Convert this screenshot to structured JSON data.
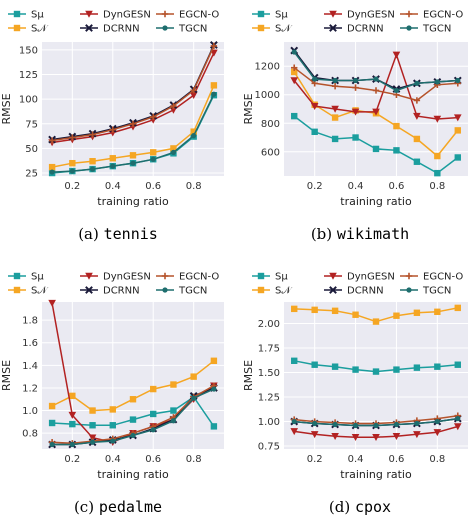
{
  "legend": {
    "s_mu": "Sμ",
    "s_n": "S𝒩",
    "dyngesn": "DynGESN",
    "dcrnn": "DCRNN",
    "egcn": "EGCN-O",
    "tgcn": "TGCN"
  },
  "series_styles": [
    {
      "key": "s_mu",
      "color": "#1b9e9e",
      "marker": "square"
    },
    {
      "key": "s_n",
      "color": "#f5a623",
      "marker": "square"
    },
    {
      "key": "dyngesn",
      "color": "#b22222",
      "marker": "triangle-down"
    },
    {
      "key": "dcrnn",
      "color": "#1a1a3a",
      "marker": "x"
    },
    {
      "key": "egcn",
      "color": "#b5532b",
      "marker": "plus"
    },
    {
      "key": "tgcn",
      "color": "#1e6e6e",
      "marker": "circle"
    }
  ],
  "chart_data": [
    {
      "type": "line",
      "caption_prefix": "(a)",
      "caption_name": "tennis",
      "xlabel": "training ratio",
      "ylabel": "RMSE",
      "xlim": [
        0.05,
        0.95
      ],
      "ylim": [
        22,
        158
      ],
      "xticks": [
        0.2,
        0.4,
        0.6,
        0.8
      ],
      "xtick_labels": [
        "0.2",
        "0.4",
        "0.6",
        "0.8"
      ],
      "yticks": [
        25,
        50,
        75,
        100,
        125,
        150
      ],
      "ytick_labels": [
        "25",
        "50",
        "75",
        "100",
        "125",
        "150"
      ],
      "x": [
        0.1,
        0.2,
        0.3,
        0.4,
        0.5,
        0.6,
        0.7,
        0.8,
        0.9
      ],
      "series": [
        {
          "key": "s_mu",
          "values": [
            25,
            27,
            29,
            32,
            35,
            39,
            45,
            62,
            104
          ]
        },
        {
          "key": "s_n",
          "values": [
            31,
            35,
            37,
            40,
            43,
            46,
            50,
            67,
            114
          ]
        },
        {
          "key": "dyngesn",
          "values": [
            56,
            59,
            62,
            66,
            72,
            79,
            89,
            104,
            147
          ]
        },
        {
          "key": "dcrnn",
          "values": [
            59,
            62,
            65,
            70,
            76,
            83,
            94,
            110,
            155
          ]
        },
        {
          "key": "egcn",
          "values": [
            58,
            61,
            64,
            69,
            75,
            82,
            93,
            109,
            154
          ]
        },
        {
          "key": "tgcn",
          "values": [
            26,
            27,
            29,
            32,
            35,
            39,
            46,
            63,
            105
          ]
        }
      ]
    },
    {
      "type": "line",
      "caption_prefix": "(b)",
      "caption_name": "wikimath",
      "xlabel": "training ratio",
      "ylabel": "RMSE",
      "xlim": [
        0.05,
        0.95
      ],
      "ylim": [
        430,
        1370
      ],
      "xticks": [
        0.2,
        0.4,
        0.6,
        0.8
      ],
      "xtick_labels": [
        "0.2",
        "0.4",
        "0.6",
        "0.8"
      ],
      "yticks": [
        600,
        800,
        1000,
        1200
      ],
      "ytick_labels": [
        "600",
        "800",
        "1000",
        "1200"
      ],
      "x": [
        0.1,
        0.2,
        0.3,
        0.4,
        0.5,
        0.6,
        0.7,
        0.8,
        0.9
      ],
      "series": [
        {
          "key": "s_mu",
          "values": [
            850,
            740,
            690,
            700,
            620,
            610,
            530,
            450,
            560
          ]
        },
        {
          "key": "s_n",
          "values": [
            1160,
            930,
            840,
            890,
            870,
            780,
            690,
            570,
            750
          ]
        },
        {
          "key": "dyngesn",
          "values": [
            1100,
            920,
            900,
            880,
            880,
            1280,
            850,
            830,
            840
          ]
        },
        {
          "key": "dcrnn",
          "values": [
            1310,
            1120,
            1100,
            1100,
            1110,
            1040,
            1080,
            1090,
            1100
          ]
        },
        {
          "key": "egcn",
          "values": [
            1190,
            1080,
            1060,
            1050,
            1030,
            1000,
            960,
            1070,
            1080
          ]
        },
        {
          "key": "tgcn",
          "values": [
            1300,
            1110,
            1100,
            1100,
            1110,
            1030,
            1080,
            1090,
            1100
          ]
        }
      ]
    },
    {
      "type": "line",
      "caption_prefix": "(c)",
      "caption_name": "pedalme",
      "xlabel": "training ratio",
      "ylabel": "RMSE",
      "xlim": [
        0.05,
        0.95
      ],
      "ylim": [
        0.66,
        1.96
      ],
      "xticks": [
        0.2,
        0.4,
        0.6,
        0.8
      ],
      "xtick_labels": [
        "0.2",
        "0.4",
        "0.6",
        "0.8"
      ],
      "yticks": [
        0.8,
        1.0,
        1.2,
        1.4,
        1.6,
        1.8
      ],
      "ytick_labels": [
        "0.8",
        "1.0",
        "1.2",
        "1.4",
        "1.6",
        "1.8"
      ],
      "x": [
        0.1,
        0.2,
        0.3,
        0.4,
        0.5,
        0.6,
        0.7,
        0.8,
        0.9
      ],
      "series": [
        {
          "key": "s_mu",
          "values": [
            0.89,
            0.88,
            0.87,
            0.87,
            0.92,
            0.97,
            1.0,
            1.12,
            0.86
          ]
        },
        {
          "key": "s_n",
          "values": [
            1.04,
            1.13,
            1.0,
            1.01,
            1.1,
            1.19,
            1.23,
            1.3,
            1.44
          ]
        },
        {
          "key": "dyngesn",
          "values": [
            1.95,
            0.96,
            0.76,
            0.72,
            0.8,
            0.86,
            0.92,
            1.1,
            1.22
          ]
        },
        {
          "key": "dcrnn",
          "values": [
            0.7,
            0.7,
            0.72,
            0.74,
            0.78,
            0.84,
            0.92,
            1.13,
            1.2
          ]
        },
        {
          "key": "egcn",
          "values": [
            0.72,
            0.71,
            0.73,
            0.75,
            0.8,
            0.86,
            0.94,
            1.12,
            1.22
          ]
        },
        {
          "key": "tgcn",
          "values": [
            0.7,
            0.7,
            0.72,
            0.73,
            0.78,
            0.83,
            0.91,
            1.11,
            1.19
          ]
        }
      ]
    },
    {
      "type": "line",
      "caption_prefix": "(d)",
      "caption_name": "cpox",
      "xlabel": "training ratio",
      "ylabel": "RMSE",
      "xlim": [
        0.05,
        0.95
      ],
      "ylim": [
        0.72,
        2.22
      ],
      "xticks": [
        0.2,
        0.4,
        0.6,
        0.8
      ],
      "xtick_labels": [
        "0.2",
        "0.4",
        "0.6",
        "0.8"
      ],
      "yticks": [
        0.75,
        1.0,
        1.25,
        1.5,
        1.75,
        2.0
      ],
      "ytick_labels": [
        "0.75",
        "1.00",
        "1.25",
        "1.50",
        "1.75",
        "2.00"
      ],
      "x": [
        0.1,
        0.2,
        0.3,
        0.4,
        0.5,
        0.6,
        0.7,
        0.8,
        0.9
      ],
      "series": [
        {
          "key": "s_mu",
          "values": [
            1.62,
            1.58,
            1.56,
            1.53,
            1.51,
            1.53,
            1.55,
            1.56,
            1.58
          ]
        },
        {
          "key": "s_n",
          "values": [
            2.15,
            2.14,
            2.13,
            2.09,
            2.02,
            2.08,
            2.11,
            2.12,
            2.16
          ]
        },
        {
          "key": "dyngesn",
          "values": [
            0.9,
            0.87,
            0.85,
            0.84,
            0.84,
            0.85,
            0.87,
            0.89,
            0.95
          ]
        },
        {
          "key": "dcrnn",
          "values": [
            1.0,
            0.98,
            0.97,
            0.96,
            0.96,
            0.97,
            0.98,
            1.0,
            1.03
          ]
        },
        {
          "key": "egcn",
          "values": [
            1.02,
            1.0,
            0.99,
            0.98,
            0.98,
            0.99,
            1.01,
            1.03,
            1.06
          ]
        },
        {
          "key": "tgcn",
          "values": [
            1.0,
            0.98,
            0.97,
            0.96,
            0.96,
            0.97,
            0.98,
            1.0,
            1.03
          ]
        }
      ]
    }
  ]
}
